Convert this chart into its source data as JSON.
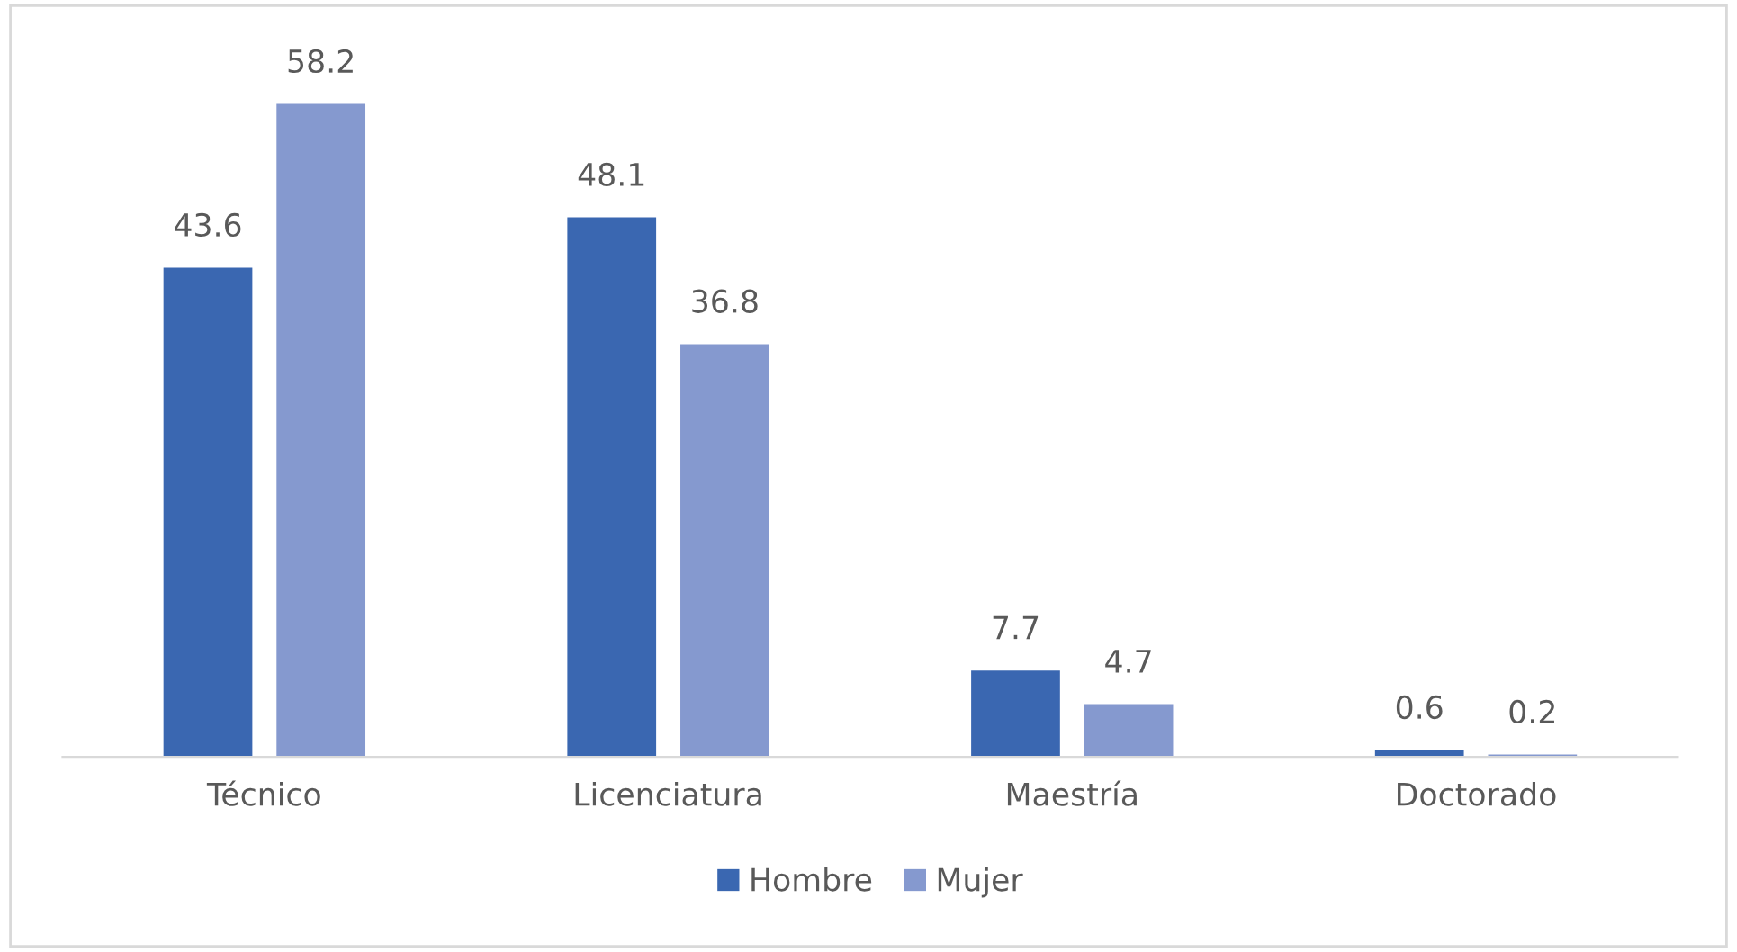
{
  "chart_data": {
    "type": "bar",
    "categories": [
      "Técnico",
      "Licenciatura",
      "Maestría",
      "Doctorado"
    ],
    "series": [
      {
        "name": "Hombre",
        "color": "#3a67b1",
        "values": [
          43.6,
          48.1,
          7.7,
          0.6
        ]
      },
      {
        "name": "Mujer",
        "color": "#8599cf",
        "values": [
          58.2,
          36.8,
          4.7,
          0.2
        ]
      }
    ],
    "data_labels": true,
    "legend": "bottom",
    "grid": false
  }
}
